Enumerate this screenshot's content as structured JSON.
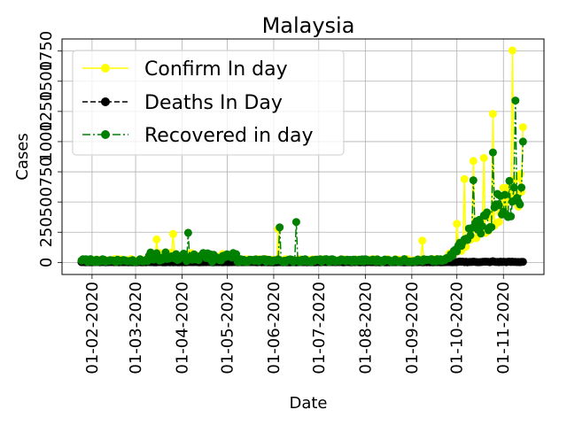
{
  "chart_data": {
    "type": "line",
    "title": "Malaysia",
    "xlabel": "Date",
    "ylabel": "Cases",
    "grid": true,
    "legend_position": "upper left",
    "x_start": "2020-01-25",
    "x_end": "2020-11-14",
    "xlim": [
      "2020-01-12",
      "2020-11-28"
    ],
    "ylim": [
      -100,
      1850
    ],
    "x_ticks": [
      "01-02-2020",
      "01-03-2020",
      "01-04-2020",
      "01-05-2020",
      "01-06-2020",
      "01-07-2020",
      "01-08-2020",
      "01-09-2020",
      "01-10-2020",
      "01-11-2020"
    ],
    "y_ticks": [
      0,
      250,
      500,
      750,
      1000,
      1250,
      1500,
      1750
    ],
    "y_tick_labels": [
      "0",
      "250",
      "500",
      "750",
      "1000",
      "1250",
      "1500",
      "1750"
    ],
    "series": [
      {
        "name": "Confirm In day",
        "color": "#ffff00",
        "line_style": "solid",
        "sample_values": [
          {
            "date": "2020-03-15",
            "value": 190
          },
          {
            "date": "2020-03-26",
            "value": 235
          },
          {
            "date": "2020-06-04",
            "value": 277
          },
          {
            "date": "2020-09-08",
            "value": 180
          },
          {
            "date": "2020-10-01",
            "value": 320
          },
          {
            "date": "2020-10-06",
            "value": 690
          },
          {
            "date": "2020-10-12",
            "value": 840
          },
          {
            "date": "2020-10-19",
            "value": 865
          },
          {
            "date": "2020-10-25",
            "value": 1230
          },
          {
            "date": "2020-11-07",
            "value": 1755
          },
          {
            "date": "2020-11-14",
            "value": 1120
          }
        ]
      },
      {
        "name": "Deaths In Day",
        "color": "#000000",
        "line_style": "dashed",
        "sample_values": [
          {
            "date": "2020-03-25",
            "value": 4
          },
          {
            "date": "2020-10-25",
            "value": 10
          },
          {
            "date": "2020-11-14",
            "value": 5
          }
        ]
      },
      {
        "name": "Recovered in day",
        "color": "#008000",
        "line_style": "dashdot",
        "sample_values": [
          {
            "date": "2020-04-05",
            "value": 245
          },
          {
            "date": "2020-06-05",
            "value": 290
          },
          {
            "date": "2020-06-16",
            "value": 335
          },
          {
            "date": "2020-10-12",
            "value": 680
          },
          {
            "date": "2020-10-25",
            "value": 910
          },
          {
            "date": "2020-11-09",
            "value": 1340
          },
          {
            "date": "2020-11-14",
            "value": 1000
          }
        ]
      }
    ]
  }
}
